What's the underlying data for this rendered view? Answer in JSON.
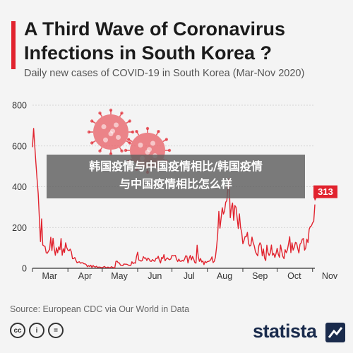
{
  "header": {
    "title": "A Third Wave of Coronavirus Infections in South Korea ?",
    "subtitle": "Daily new cases of COVID-19 in South Korea (Mar-Nov 2020)"
  },
  "overlay": {
    "line1": "韩国疫情与中国疫情相比/韩国疫情",
    "line2": "与中国疫情相比怎么样"
  },
  "footer": {
    "source": "Source: European CDC via Our World in Data",
    "brand": "statista",
    "license_icons": [
      "creative-commons-icon",
      "attribution-icon",
      "no-derivatives-icon"
    ]
  },
  "colors": {
    "accent": "#e1232e",
    "line": "#e1232e",
    "grid": "#c9c9c9",
    "brand": "#1a2b4c"
  },
  "chart_data": {
    "type": "line",
    "title": "A Third Wave of Coronavirus Infections in South Korea ?",
    "xlabel": "",
    "ylabel": "",
    "ylim": [
      0,
      800
    ],
    "yticks": [
      0,
      200,
      400,
      600,
      800
    ],
    "month_labels": [
      "Mar",
      "Apr",
      "May",
      "Jun",
      "Jul",
      "Aug",
      "Sep",
      "Oct",
      "Nov"
    ],
    "grid": true,
    "last_value_label": "313",
    "series": [
      {
        "values": [
          594,
          686,
          600,
          516,
          438,
          367,
          248,
          131,
          242,
          114,
          110,
          107,
          76,
          74,
          84,
          93,
          152,
          87,
          147,
          98,
          64,
          100,
          76,
          105,
          91,
          146,
          64,
          96,
          78,
          125,
          101,
          89,
          86,
          94,
          81,
          47,
          47,
          53,
          39,
          27,
          30,
          32,
          25,
          27,
          27,
          22,
          22,
          18,
          8,
          13,
          9,
          15,
          4,
          14,
          8,
          6,
          10,
          4,
          6,
          6,
          4,
          3,
          6,
          9,
          4,
          3,
          6,
          4,
          2,
          8,
          5,
          3,
          2,
          34,
          35,
          27,
          26,
          15,
          15,
          13,
          21,
          20,
          20,
          19,
          15,
          13,
          14,
          32,
          23,
          27,
          25,
          58,
          79,
          40,
          39,
          35,
          38,
          57,
          49,
          51,
          38,
          50,
          45,
          35,
          34,
          43,
          37,
          34,
          49,
          48,
          59,
          39,
          26,
          53,
          48,
          67,
          37,
          46,
          51,
          45,
          42,
          46,
          63,
          61,
          62,
          63,
          44,
          33,
          45,
          35,
          34,
          39,
          35,
          44,
          61,
          60,
          26,
          48,
          63,
          41,
          58,
          45,
          28,
          25,
          113,
          58,
          34,
          48,
          31,
          36,
          18,
          34,
          28,
          33,
          34,
          36,
          43,
          56,
          28,
          34,
          54,
          103,
          166,
          279,
          197,
          246,
          297,
          266,
          280,
          324,
          332,
          397,
          441,
          248,
          299,
          320,
          235,
          308,
          299,
          248,
          195,
          267,
          200,
          176,
          120,
          136,
          156,
          155,
          176,
          121,
          109,
          113,
          153,
          126,
          110,
          82,
          70,
          61,
          110,
          125,
          114,
          61,
          95,
          50,
          38,
          113,
          77,
          63,
          75,
          114,
          64,
          73,
          53,
          72,
          98,
          69,
          54,
          114,
          84,
          58,
          47,
          91,
          76,
          91,
          121,
          155,
          77,
          125,
          89,
          103,
          127,
          124,
          97,
          75,
          118,
          125,
          143,
          146,
          89,
          100,
          143,
          126,
          191,
          205,
          208,
          223,
          230,
          313
        ]
      }
    ]
  }
}
